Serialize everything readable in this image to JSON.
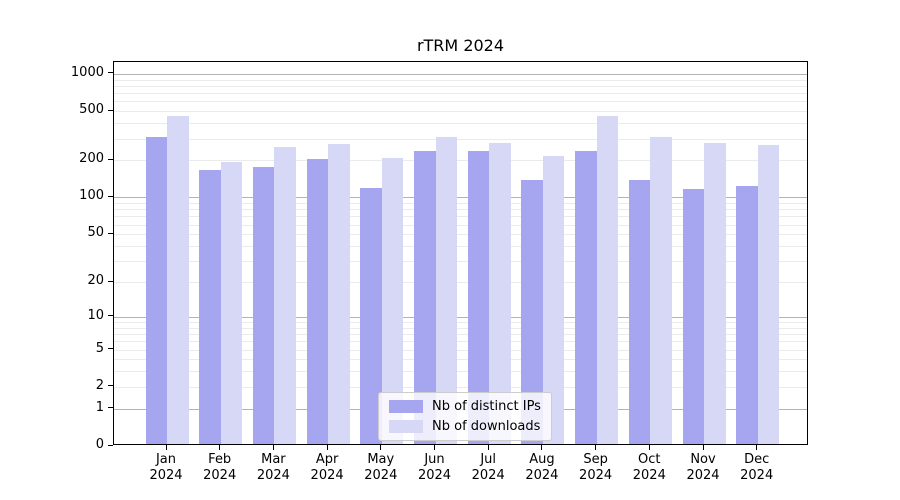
{
  "chart_data": {
    "type": "bar",
    "title": "rTRM 2024",
    "categories": [
      "Jan",
      "Feb",
      "Mar",
      "Apr",
      "May",
      "Jun",
      "Jul",
      "Aug",
      "Sep",
      "Oct",
      "Nov",
      "Dec"
    ],
    "year_line": "2024",
    "series": [
      {
        "name": "Nb of distinct IPs",
        "color": "#a5a5f0",
        "values": [
          296,
          162,
          171,
          198,
          114,
          231,
          231,
          134,
          230,
          134,
          113,
          120
        ]
      },
      {
        "name": "Nb of downloads",
        "color": "#d7d7f6",
        "values": [
          443,
          188,
          246,
          262,
          200,
          300,
          265,
          210,
          438,
          296,
          268,
          258
        ]
      }
    ],
    "xlabel": "",
    "ylabel": "",
    "yscale": "log1p",
    "yticks": [
      0,
      1,
      2,
      5,
      10,
      20,
      50,
      100,
      200,
      500,
      1000
    ],
    "ylim": [
      0,
      1240
    ],
    "grid": "horizontal major+minor",
    "legend_position": "lower center inside plot",
    "colors": {
      "major_grid": "#b3b3b3",
      "minor_grid": "#ebebeb",
      "axis": "#000000"
    }
  }
}
